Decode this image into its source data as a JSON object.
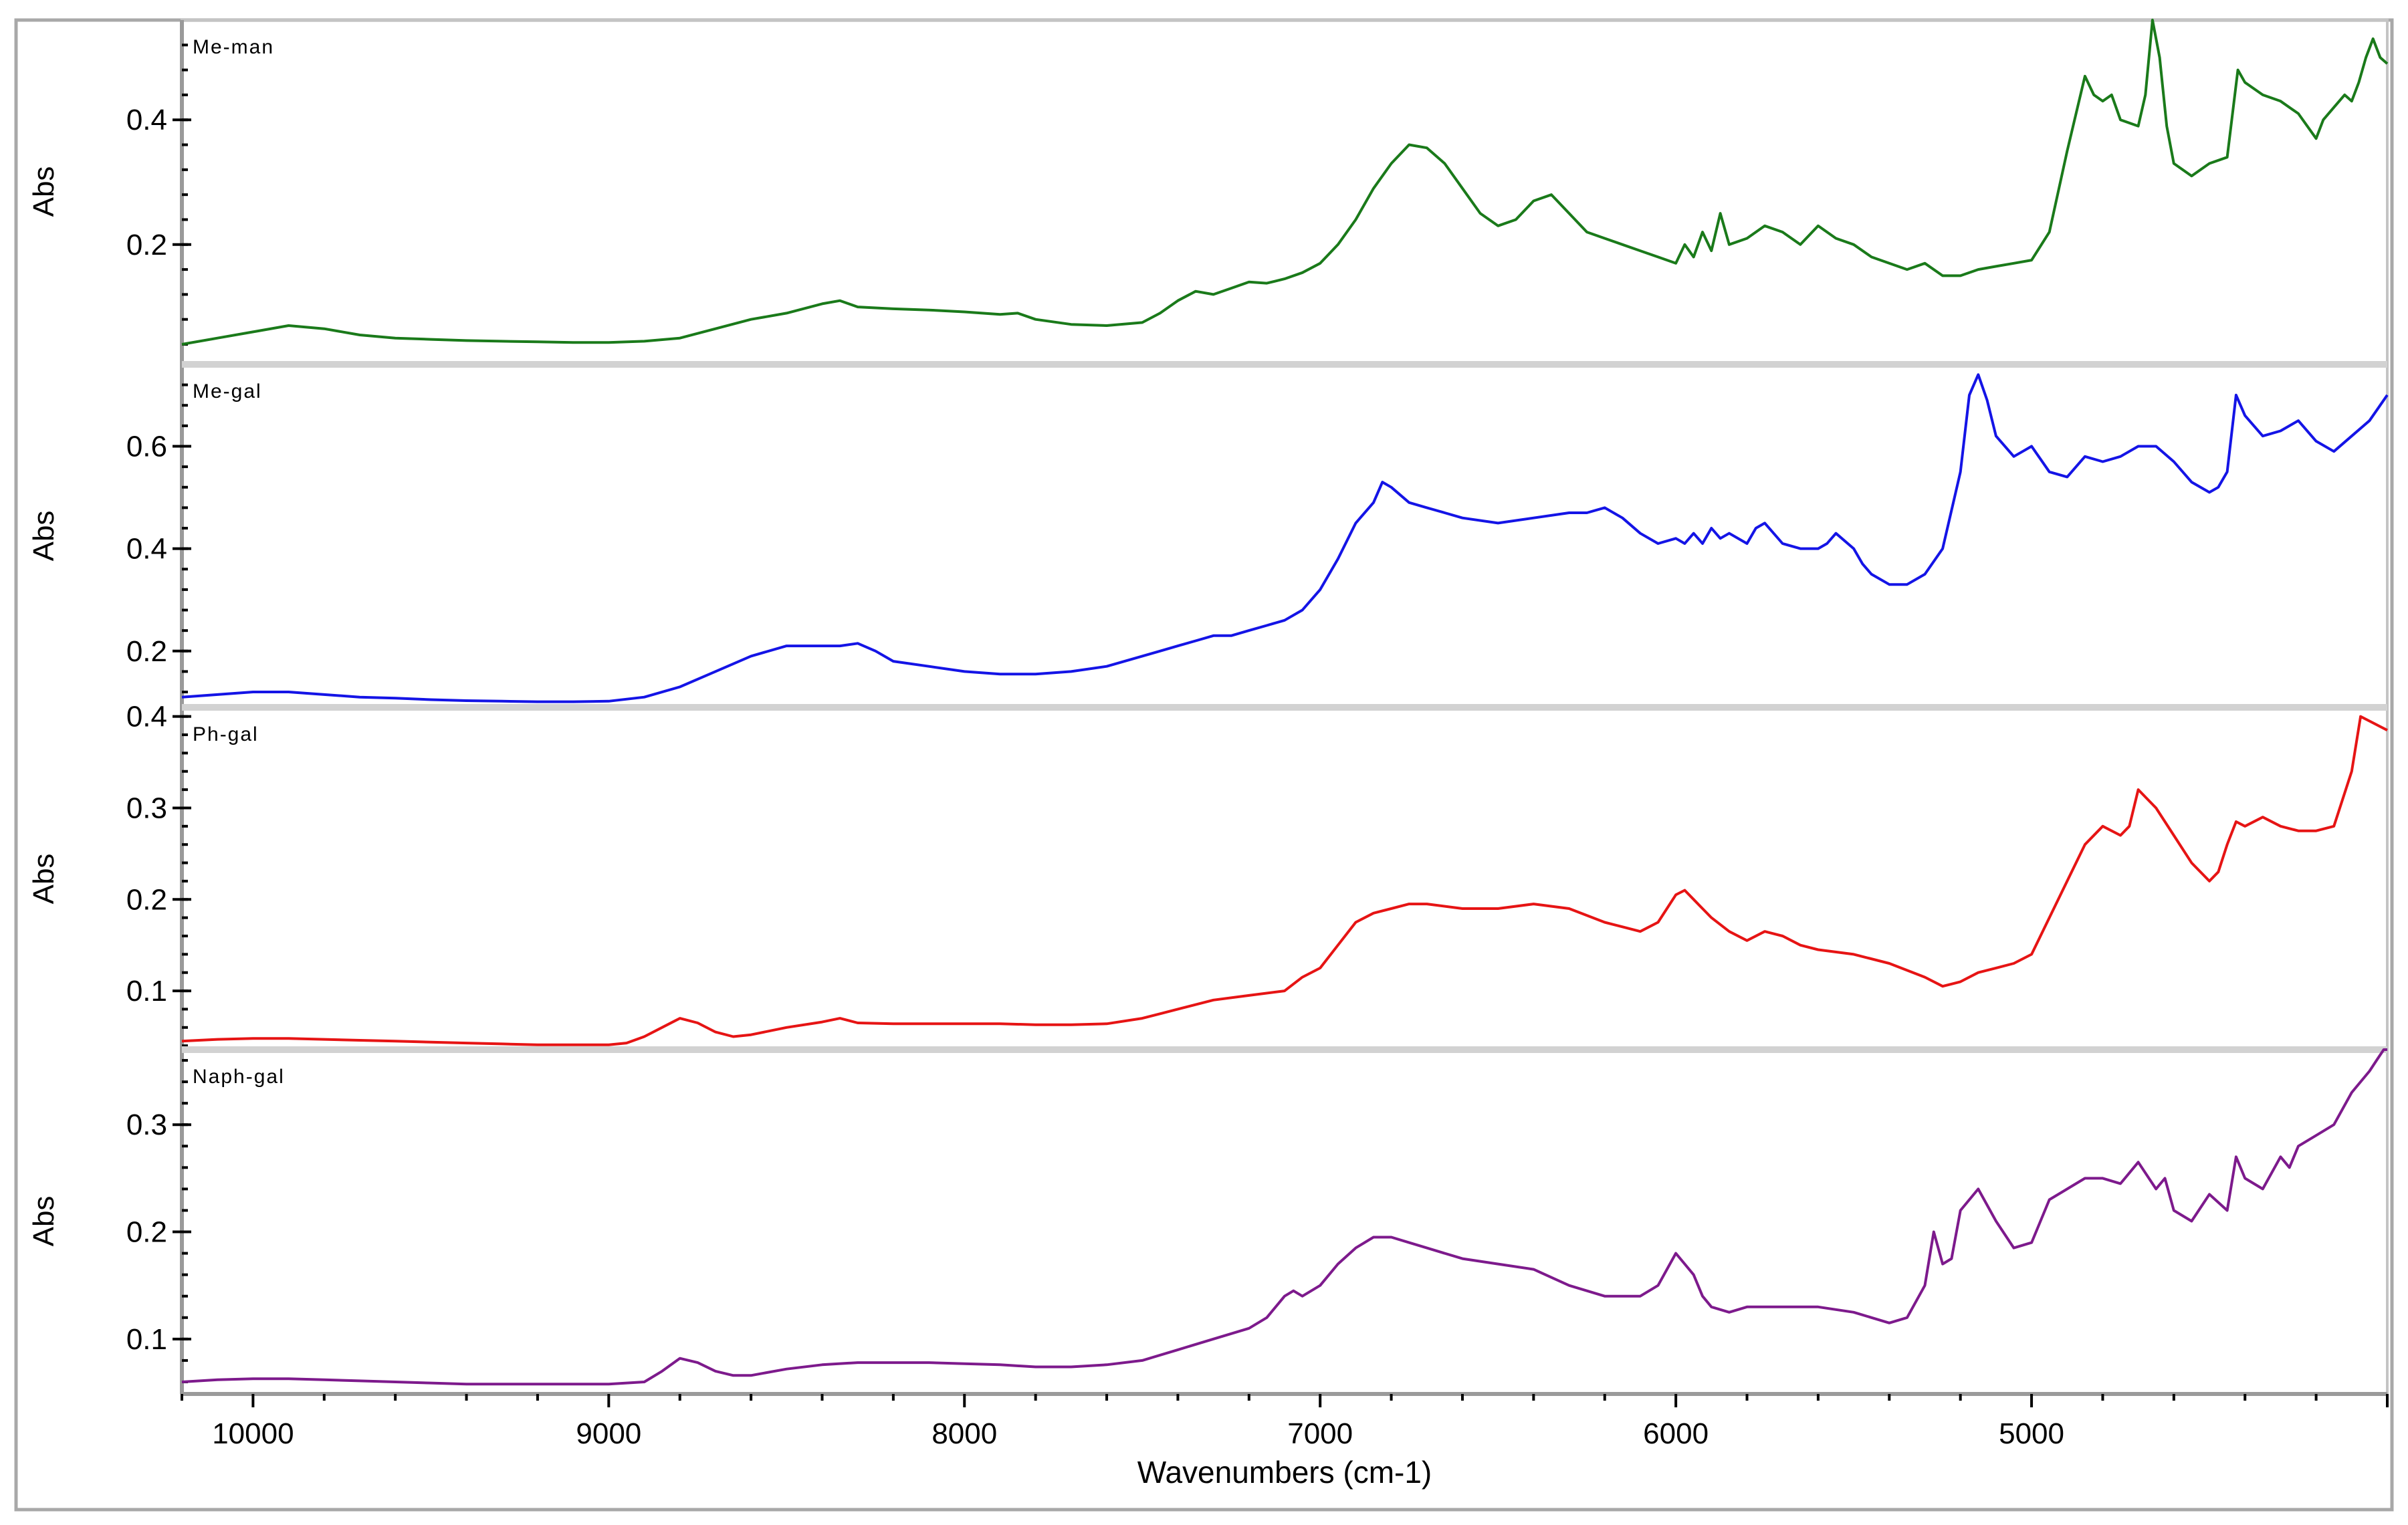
{
  "chart_data": {
    "type": "line",
    "xlabel": "Wavenumbers (cm-1)",
    "x_ticks": [
      10000,
      9000,
      8000,
      7000,
      6000,
      5000
    ],
    "xlim": [
      10200,
      4000
    ],
    "panels": [
      {
        "name": "Me-man",
        "ylabel": "Abs",
        "color": "#1a7a1a",
        "ylim": [
          0.01,
          0.56
        ],
        "y_ticks": [
          0.2,
          0.4
        ],
        "x": [
          10200,
          10100,
          10000,
          9900,
          9800,
          9700,
          9600,
          9500,
          9400,
          9300,
          9200,
          9100,
          9000,
          8900,
          8800,
          8700,
          8600,
          8500,
          8400,
          8350,
          8300,
          8200,
          8100,
          8000,
          7900,
          7850,
          7800,
          7700,
          7600,
          7500,
          7450,
          7400,
          7350,
          7300,
          7250,
          7200,
          7150,
          7100,
          7050,
          7000,
          6950,
          6900,
          6850,
          6800,
          6750,
          6700,
          6650,
          6600,
          6550,
          6500,
          6450,
          6400,
          6350,
          6300,
          6250,
          6200,
          6150,
          6100,
          6050,
          6000,
          5975,
          5950,
          5925,
          5900,
          5875,
          5850,
          5800,
          5750,
          5700,
          5650,
          5600,
          5550,
          5500,
          5450,
          5400,
          5350,
          5300,
          5250,
          5200,
          5150,
          5100,
          5050,
          5000,
          4950,
          4900,
          4850,
          4825,
          4800,
          4775,
          4750,
          4700,
          4680,
          4660,
          4640,
          4620,
          4600,
          4550,
          4500,
          4450,
          4420,
          4400,
          4350,
          4300,
          4250,
          4200,
          4180,
          4150,
          4120,
          4100,
          4080,
          4060,
          4040,
          4020,
          4000
        ],
        "y": [
          0.04,
          0.05,
          0.06,
          0.07,
          0.065,
          0.055,
          0.05,
          0.048,
          0.046,
          0.045,
          0.044,
          0.043,
          0.043,
          0.045,
          0.05,
          0.065,
          0.08,
          0.09,
          0.105,
          0.11,
          0.1,
          0.097,
          0.095,
          0.092,
          0.088,
          0.09,
          0.08,
          0.072,
          0.07,
          0.075,
          0.09,
          0.11,
          0.125,
          0.12,
          0.13,
          0.14,
          0.138,
          0.145,
          0.155,
          0.17,
          0.2,
          0.24,
          0.29,
          0.33,
          0.36,
          0.355,
          0.33,
          0.29,
          0.25,
          0.23,
          0.24,
          0.27,
          0.28,
          0.25,
          0.22,
          0.21,
          0.2,
          0.19,
          0.18,
          0.17,
          0.2,
          0.18,
          0.22,
          0.19,
          0.25,
          0.2,
          0.21,
          0.23,
          0.22,
          0.2,
          0.23,
          0.21,
          0.2,
          0.18,
          0.17,
          0.16,
          0.17,
          0.15,
          0.15,
          0.16,
          0.165,
          0.17,
          0.175,
          0.22,
          0.35,
          0.47,
          0.44,
          0.43,
          0.44,
          0.4,
          0.39,
          0.44,
          0.56,
          0.5,
          0.39,
          0.33,
          0.31,
          0.33,
          0.34,
          0.48,
          0.46,
          0.44,
          0.43,
          0.41,
          0.37,
          0.4,
          0.42,
          0.44,
          0.43,
          0.46,
          0.5,
          0.53,
          0.5,
          0.49
        ]
      },
      {
        "name": "Me-gal",
        "ylabel": "Abs",
        "color": "#1414e6",
        "ylim": [
          0.09,
          0.76
        ],
        "y_ticks": [
          0.2,
          0.4,
          0.6
        ],
        "x": [
          10200,
          10100,
          10000,
          9900,
          9800,
          9700,
          9600,
          9500,
          9400,
          9300,
          9200,
          9100,
          9000,
          8900,
          8800,
          8700,
          8600,
          8500,
          8450,
          8400,
          8350,
          8300,
          8250,
          8200,
          8100,
          8000,
          7900,
          7800,
          7700,
          7600,
          7500,
          7450,
          7400,
          7350,
          7300,
          7250,
          7200,
          7150,
          7100,
          7050,
          7000,
          6950,
          6900,
          6850,
          6825,
          6800,
          6750,
          6700,
          6650,
          6600,
          6500,
          6400,
          6300,
          6250,
          6200,
          6150,
          6100,
          6050,
          6000,
          5975,
          5950,
          5925,
          5900,
          5875,
          5850,
          5800,
          5775,
          5750,
          5700,
          5650,
          5600,
          5575,
          5550,
          5500,
          5475,
          5450,
          5400,
          5350,
          5300,
          5250,
          5200,
          5175,
          5150,
          5125,
          5100,
          5050,
          5025,
          5000,
          4950,
          4900,
          4850,
          4800,
          4750,
          4700,
          4650,
          4600,
          4550,
          4500,
          4475,
          4450,
          4425,
          4400,
          4350,
          4300,
          4250,
          4200,
          4150,
          4100,
          4050,
          4000
        ],
        "y": [
          0.11,
          0.115,
          0.12,
          0.12,
          0.115,
          0.11,
          0.108,
          0.105,
          0.103,
          0.102,
          0.101,
          0.101,
          0.102,
          0.11,
          0.13,
          0.16,
          0.19,
          0.21,
          0.21,
          0.21,
          0.21,
          0.215,
          0.2,
          0.18,
          0.17,
          0.16,
          0.155,
          0.155,
          0.16,
          0.17,
          0.19,
          0.2,
          0.21,
          0.22,
          0.23,
          0.23,
          0.24,
          0.25,
          0.26,
          0.28,
          0.32,
          0.38,
          0.45,
          0.49,
          0.53,
          0.52,
          0.49,
          0.48,
          0.47,
          0.46,
          0.45,
          0.46,
          0.47,
          0.47,
          0.48,
          0.46,
          0.43,
          0.41,
          0.42,
          0.41,
          0.43,
          0.41,
          0.44,
          0.42,
          0.43,
          0.41,
          0.44,
          0.45,
          0.41,
          0.4,
          0.4,
          0.41,
          0.43,
          0.4,
          0.37,
          0.35,
          0.33,
          0.33,
          0.35,
          0.4,
          0.55,
          0.7,
          0.74,
          0.69,
          0.62,
          0.58,
          0.59,
          0.6,
          0.55,
          0.54,
          0.58,
          0.57,
          0.58,
          0.6,
          0.6,
          0.57,
          0.53,
          0.51,
          0.52,
          0.55,
          0.7,
          0.66,
          0.62,
          0.63,
          0.65,
          0.61,
          0.59,
          0.62,
          0.65,
          0.7
        ]
      },
      {
        "name": "Ph-gal",
        "ylabel": "Abs",
        "color": "#e61414",
        "ylim": [
          0.035,
          0.41
        ],
        "y_ticks": [
          0.1,
          0.2,
          0.3,
          0.4
        ],
        "x": [
          10200,
          10100,
          10000,
          9900,
          9800,
          9700,
          9600,
          9500,
          9400,
          9300,
          9200,
          9100,
          9000,
          8950,
          8900,
          8850,
          8800,
          8750,
          8700,
          8650,
          8600,
          8500,
          8400,
          8350,
          8300,
          8200,
          8100,
          8000,
          7900,
          7800,
          7700,
          7600,
          7500,
          7450,
          7400,
          7300,
          7200,
          7100,
          7050,
          7000,
          6950,
          6900,
          6850,
          6800,
          6750,
          6700,
          6600,
          6500,
          6400,
          6300,
          6200,
          6150,
          6100,
          6050,
          6000,
          5975,
          5950,
          5925,
          5900,
          5850,
          5800,
          5750,
          5700,
          5650,
          5600,
          5500,
          5400,
          5300,
          5250,
          5200,
          5150,
          5100,
          5050,
          5000,
          4950,
          4900,
          4850,
          4800,
          4750,
          4725,
          4700,
          4650,
          4600,
          4550,
          4500,
          4475,
          4450,
          4425,
          4400,
          4350,
          4300,
          4250,
          4200,
          4150,
          4100,
          4075,
          4050,
          4025,
          4000
        ],
        "y": [
          0.045,
          0.047,
          0.048,
          0.048,
          0.047,
          0.046,
          0.045,
          0.044,
          0.043,
          0.042,
          0.041,
          0.041,
          0.041,
          0.043,
          0.05,
          0.06,
          0.07,
          0.065,
          0.055,
          0.05,
          0.052,
          0.06,
          0.066,
          0.07,
          0.065,
          0.064,
          0.064,
          0.064,
          0.064,
          0.063,
          0.063,
          0.064,
          0.07,
          0.075,
          0.08,
          0.09,
          0.095,
          0.1,
          0.115,
          0.125,
          0.15,
          0.175,
          0.185,
          0.19,
          0.195,
          0.195,
          0.19,
          0.19,
          0.195,
          0.19,
          0.175,
          0.17,
          0.165,
          0.175,
          0.205,
          0.21,
          0.2,
          0.19,
          0.18,
          0.165,
          0.155,
          0.165,
          0.16,
          0.15,
          0.145,
          0.14,
          0.13,
          0.115,
          0.105,
          0.11,
          0.12,
          0.125,
          0.13,
          0.14,
          0.18,
          0.22,
          0.26,
          0.28,
          0.27,
          0.28,
          0.32,
          0.3,
          0.27,
          0.24,
          0.22,
          0.23,
          0.26,
          0.285,
          0.28,
          0.29,
          0.28,
          0.275,
          0.275,
          0.28,
          0.34,
          0.4,
          0.395,
          0.39,
          0.385
        ]
      },
      {
        "name": "Naph-gal",
        "ylabel": "Abs",
        "color": "#7d1a8c",
        "ylim": [
          0.05,
          0.37
        ],
        "y_ticks": [
          0.1,
          0.2,
          0.3
        ],
        "x": [
          10200,
          10100,
          10000,
          9900,
          9800,
          9700,
          9600,
          9500,
          9400,
          9300,
          9200,
          9100,
          9000,
          8900,
          8850,
          8800,
          8750,
          8700,
          8650,
          8600,
          8500,
          8400,
          8300,
          8200,
          8100,
          8000,
          7900,
          7800,
          7700,
          7600,
          7500,
          7400,
          7300,
          7200,
          7150,
          7100,
          7075,
          7050,
          7000,
          6950,
          6900,
          6850,
          6800,
          6750,
          6700,
          6600,
          6500,
          6400,
          6300,
          6200,
          6150,
          6100,
          6050,
          6000,
          5975,
          5950,
          5925,
          5900,
          5850,
          5800,
          5700,
          5600,
          5500,
          5450,
          5400,
          5350,
          5300,
          5275,
          5250,
          5225,
          5200,
          5150,
          5100,
          5050,
          5000,
          4950,
          4900,
          4850,
          4800,
          4750,
          4700,
          4650,
          4625,
          4600,
          4550,
          4500,
          4450,
          4425,
          4400,
          4350,
          4300,
          4275,
          4250,
          4200,
          4150,
          4100,
          4075,
          4050,
          4030,
          4010,
          4000
        ],
        "y": [
          0.06,
          0.062,
          0.063,
          0.063,
          0.062,
          0.061,
          0.06,
          0.059,
          0.058,
          0.058,
          0.058,
          0.058,
          0.058,
          0.06,
          0.07,
          0.082,
          0.078,
          0.07,
          0.066,
          0.066,
          0.072,
          0.076,
          0.078,
          0.078,
          0.078,
          0.077,
          0.076,
          0.074,
          0.074,
          0.076,
          0.08,
          0.09,
          0.1,
          0.11,
          0.12,
          0.14,
          0.145,
          0.14,
          0.15,
          0.17,
          0.185,
          0.195,
          0.195,
          0.19,
          0.185,
          0.175,
          0.17,
          0.165,
          0.15,
          0.14,
          0.14,
          0.14,
          0.15,
          0.18,
          0.17,
          0.16,
          0.14,
          0.13,
          0.125,
          0.13,
          0.13,
          0.13,
          0.125,
          0.12,
          0.115,
          0.12,
          0.15,
          0.2,
          0.17,
          0.175,
          0.22,
          0.24,
          0.21,
          0.185,
          0.19,
          0.23,
          0.24,
          0.25,
          0.25,
          0.245,
          0.265,
          0.24,
          0.25,
          0.22,
          0.21,
          0.235,
          0.22,
          0.27,
          0.25,
          0.24,
          0.27,
          0.26,
          0.28,
          0.29,
          0.3,
          0.33,
          0.34,
          0.35,
          0.36,
          0.37,
          0.37
        ]
      }
    ]
  }
}
